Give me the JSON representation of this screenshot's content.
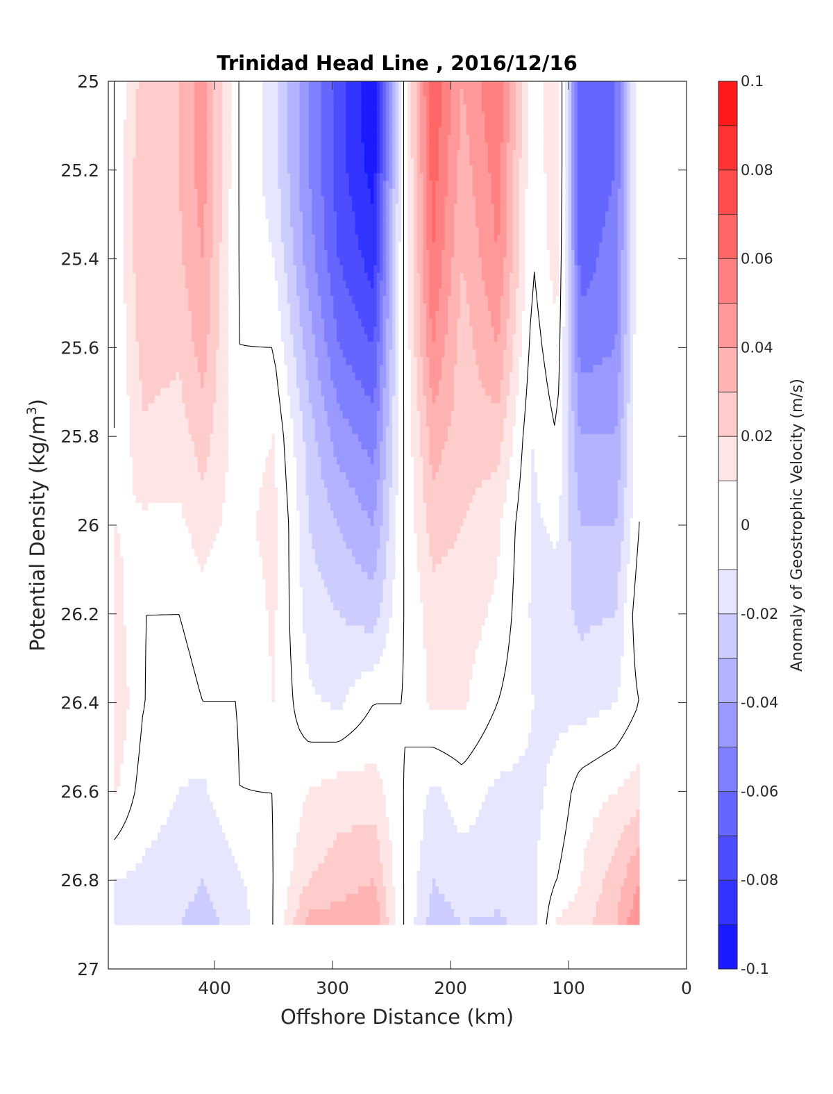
{
  "chart_data": {
    "type": "contour",
    "title": "Trinidad Head Line , 2016/12/16",
    "xlabel": "Offshore Distance (km)",
    "ylabel": "Potential Density (kg/m",
    "ylabel_sup": "3",
    "ylabel_close": ")",
    "xlim": [
      490,
      0
    ],
    "ylim": [
      25,
      27
    ],
    "x_reversed": true,
    "y_reversed": true,
    "xticks": [
      400,
      300,
      200,
      100,
      0
    ],
    "yticks": [
      "25",
      "25.2",
      "25.4",
      "25.6",
      "25.8",
      "26",
      "26.2",
      "26.4",
      "26.6",
      "26.8",
      "27"
    ],
    "data_ymax": 26.9,
    "colorbar": {
      "label": "Anomaly of Geostrophic Velocity (m/s)",
      "clim": [
        -0.1,
        0.1
      ],
      "levels": [
        -0.1,
        -0.09,
        -0.08,
        -0.07,
        -0.06,
        -0.05,
        -0.04,
        -0.03,
        -0.02,
        -0.01,
        0.01,
        0.02,
        0.03,
        0.04,
        0.05,
        0.06,
        0.07,
        0.08,
        0.09,
        0.1
      ],
      "ticks": [
        "-0.1",
        "-0.08",
        "-0.06",
        "-0.04",
        "-0.02",
        "0",
        "0.02",
        "0.04",
        "0.06",
        "0.08",
        "0.1"
      ],
      "colors": [
        "#0000ff",
        "#1a1aff",
        "#3333ff",
        "#4d4dff",
        "#6666ff",
        "#8080ff",
        "#9999ff",
        "#b3b3ff",
        "#ccccff",
        "#e6e6ff",
        "#ffffff",
        "#ffe6e6",
        "#ffcccc",
        "#ffb3b3",
        "#ff9999",
        "#ff8080",
        "#ff6666",
        "#ff4d4d",
        "#ff3333",
        "#ff1a1a",
        "#ff0000"
      ]
    },
    "grid": false,
    "stations_km": [
      485,
      460,
      430,
      410,
      380,
      350,
      320,
      295,
      265,
      240,
      215,
      190,
      160,
      130,
      110,
      90,
      60,
      40
    ],
    "density_levels": [
      25.0,
      25.2,
      25.4,
      25.6,
      25.8,
      26.0,
      26.2,
      26.4,
      26.6,
      26.8,
      26.9
    ],
    "velocity_anomaly": [
      [
        0.0,
        0.025,
        0.03,
        0.045,
        0.0,
        -0.015,
        -0.05,
        -0.075,
        -0.1,
        0.0,
        0.07,
        0.04,
        0.06,
        0.0,
        0.02,
        -0.07,
        -0.06,
        0.0
      ],
      [
        0.0,
        0.03,
        0.03,
        0.045,
        0.0,
        -0.015,
        -0.05,
        -0.075,
        -0.095,
        0.0,
        0.065,
        0.035,
        0.055,
        0.0,
        0.02,
        -0.07,
        -0.06,
        0.0
      ],
      [
        0.0,
        0.03,
        0.028,
        0.04,
        0.0,
        -0.01,
        -0.045,
        -0.07,
        -0.085,
        0.0,
        0.06,
        0.03,
        0.05,
        0.0,
        0.015,
        -0.065,
        -0.055,
        0.0
      ],
      [
        0.0,
        0.025,
        0.022,
        0.035,
        0.0,
        0.0,
        -0.035,
        -0.06,
        -0.07,
        0.0,
        0.05,
        0.025,
        0.04,
        -0.005,
        0.008,
        -0.055,
        -0.05,
        0.0
      ],
      [
        0.0,
        0.018,
        0.015,
        0.025,
        0.005,
        0.01,
        -0.025,
        -0.045,
        -0.055,
        0.0,
        0.035,
        0.025,
        0.025,
        -0.01,
        0.0,
        -0.04,
        -0.04,
        0.0
      ],
      [
        0.01,
        0.008,
        0.008,
        0.015,
        0.005,
        0.015,
        -0.02,
        -0.03,
        -0.04,
        0.0,
        0.025,
        0.02,
        0.012,
        -0.012,
        -0.008,
        -0.03,
        -0.03,
        0.0
      ],
      [
        0.015,
        0.0,
        0.0,
        0.005,
        0.0,
        0.012,
        -0.015,
        -0.02,
        -0.025,
        0.0,
        0.015,
        0.015,
        0.008,
        -0.012,
        -0.015,
        -0.022,
        -0.02,
        0.008
      ],
      [
        0.02,
        0.0,
        -0.005,
        0.0,
        0.0,
        0.01,
        -0.008,
        -0.012,
        0.0,
        0.0,
        0.012,
        0.012,
        0.0,
        -0.01,
        -0.012,
        -0.015,
        -0.01,
        0.0
      ],
      [
        0.012,
        -0.005,
        -0.01,
        -0.012,
        0.0,
        0.0,
        0.01,
        0.015,
        0.015,
        0.0,
        -0.012,
        -0.005,
        -0.012,
        -0.012,
        -0.008,
        0.005,
        0.01,
        0.015
      ],
      [
        -0.01,
        -0.012,
        -0.015,
        -0.02,
        -0.012,
        0.0,
        0.02,
        0.025,
        0.03,
        0.0,
        -0.02,
        -0.015,
        -0.015,
        -0.012,
        0.0,
        0.01,
        0.025,
        0.04
      ],
      [
        -0.015,
        -0.02,
        -0.02,
        -0.025,
        -0.015,
        0.0,
        0.035,
        0.035,
        0.04,
        0.0,
        -0.025,
        -0.02,
        -0.022,
        -0.015,
        0.012,
        0.015,
        0.03,
        0.05
      ]
    ]
  }
}
